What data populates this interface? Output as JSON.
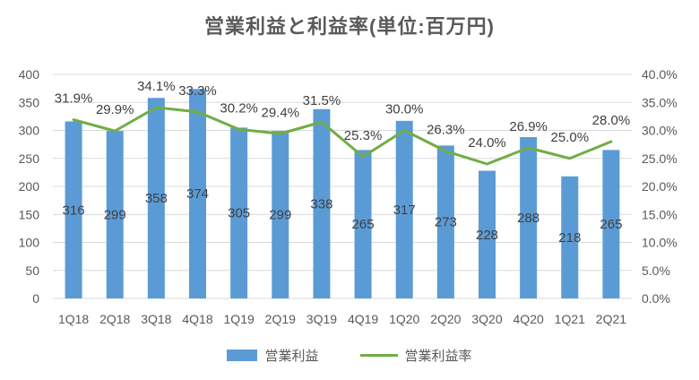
{
  "title": "営業利益と利益率(単位:百万円)",
  "colors": {
    "bar": "#5B9BD5",
    "line": "#70AD47",
    "grid": "#D9D9D9",
    "axis_text": "#595959",
    "data_label_text": "#404040"
  },
  "legend": {
    "items": [
      {
        "label": "営業利益",
        "swatch": "bar"
      },
      {
        "label": "営業利益率",
        "swatch": "line"
      }
    ]
  },
  "chart_data": {
    "type": "bar+line combo",
    "title": "営業利益と利益率(単位:百万円)",
    "categories": [
      "1Q18",
      "2Q18",
      "3Q18",
      "4Q18",
      "1Q19",
      "2Q19",
      "3Q19",
      "4Q19",
      "1Q20",
      "2Q20",
      "3Q20",
      "4Q20",
      "1Q21",
      "2Q21"
    ],
    "series": [
      {
        "name": "営業利益",
        "type": "bar",
        "axis": "left",
        "values": [
          316,
          299,
          358,
          374,
          305,
          299,
          338,
          265,
          317,
          273,
          228,
          288,
          218,
          265
        ]
      },
      {
        "name": "営業利益率",
        "type": "line",
        "axis": "right",
        "unit": "%",
        "values": [
          31.9,
          29.9,
          34.1,
          33.3,
          30.2,
          29.4,
          31.5,
          25.3,
          30.0,
          26.3,
          24.0,
          26.9,
          25.0,
          28.0
        ]
      }
    ],
    "left_axis": {
      "min": 0,
      "max": 400,
      "step": 50,
      "ticks": [
        "0",
        "50",
        "100",
        "150",
        "200",
        "250",
        "300",
        "350",
        "400"
      ]
    },
    "right_axis": {
      "min": 0,
      "max": 40,
      "step": 5,
      "ticks": [
        "0.0%",
        "5.0%",
        "10.0%",
        "15.0%",
        "20.0%",
        "25.0%",
        "30.0%",
        "35.0%",
        "40.0%"
      ]
    },
    "grid": true,
    "data_labels": true,
    "legend_position": "bottom"
  }
}
